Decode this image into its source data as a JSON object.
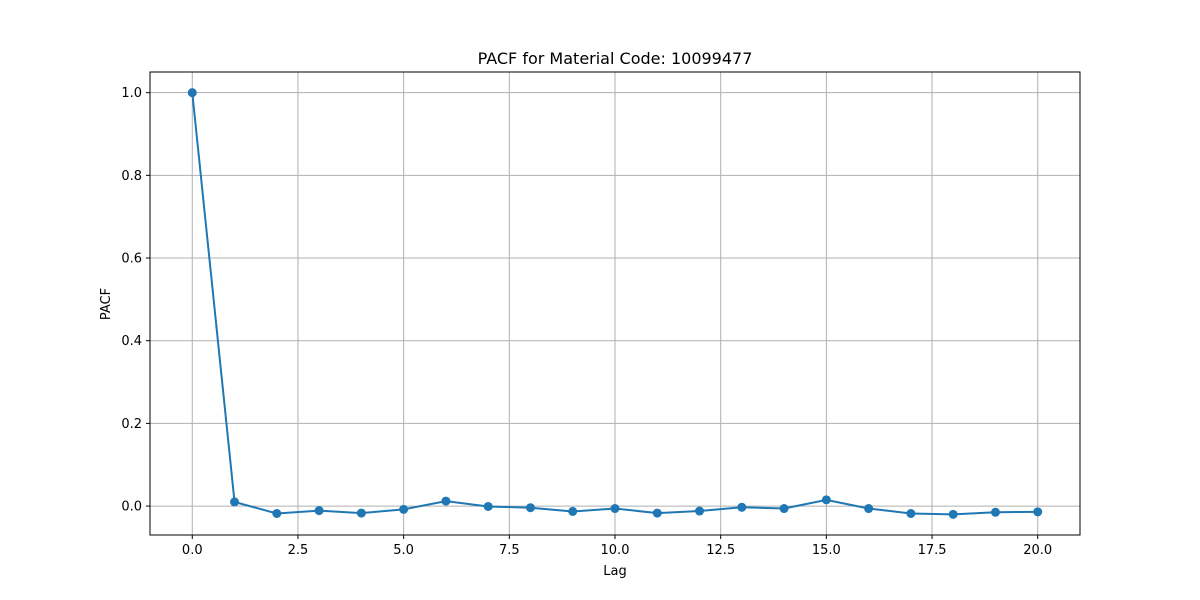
{
  "chart_data": {
    "type": "line",
    "title": "PACF for Material Code: 10099477",
    "xlabel": "Lag",
    "ylabel": "PACF",
    "xlim": [
      -1,
      21
    ],
    "ylim": [
      -0.07,
      1.05
    ],
    "xticks": [
      0.0,
      2.5,
      5.0,
      7.5,
      10.0,
      12.5,
      15.0,
      17.5,
      20.0
    ],
    "xtick_labels": [
      "0.0",
      "2.5",
      "5.0",
      "7.5",
      "10.0",
      "12.5",
      "15.0",
      "17.5",
      "20.0"
    ],
    "yticks": [
      0.0,
      0.2,
      0.4,
      0.6,
      0.8,
      1.0
    ],
    "ytick_labels": [
      "0.0",
      "0.2",
      "0.4",
      "0.6",
      "0.8",
      "1.0"
    ],
    "grid": true,
    "line_color": "#1f77b4",
    "grid_color": "#b0b0b0",
    "marker": "circle",
    "x": [
      0,
      1,
      2,
      3,
      4,
      5,
      6,
      7,
      8,
      9,
      10,
      11,
      12,
      13,
      14,
      15,
      16,
      17,
      18,
      19,
      20
    ],
    "y": [
      1.0,
      0.01,
      -0.018,
      -0.011,
      -0.017,
      -0.008,
      0.012,
      -0.001,
      -0.004,
      -0.013,
      -0.006,
      -0.017,
      -0.012,
      -0.003,
      -0.006,
      0.015,
      -0.006,
      -0.018,
      -0.02,
      -0.015,
      -0.014
    ]
  }
}
